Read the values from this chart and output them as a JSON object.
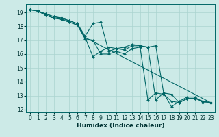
{
  "xlabel": "Humidex (Indice chaleur)",
  "bg_color": "#cceae7",
  "grid_color": "#aad4d0",
  "line_color": "#006666",
  "xlim": [
    -0.5,
    23.5
  ],
  "ylim": [
    11.8,
    19.6
  ],
  "xticks": [
    0,
    1,
    2,
    3,
    4,
    5,
    6,
    7,
    8,
    9,
    10,
    11,
    12,
    13,
    14,
    15,
    16,
    17,
    18,
    19,
    20,
    21,
    22,
    23
  ],
  "yticks": [
    12,
    13,
    14,
    15,
    16,
    17,
    18,
    19
  ],
  "series": [
    {
      "x": [
        0,
        1,
        2,
        3,
        4,
        5,
        6,
        7,
        8,
        9,
        10,
        11,
        12,
        13,
        14,
        15,
        16,
        17,
        18,
        19,
        20,
        21,
        22,
        23
      ],
      "y": [
        19.2,
        19.1,
        18.8,
        18.6,
        18.5,
        18.3,
        18.1,
        17.1,
        17.0,
        16.0,
        16.0,
        16.2,
        16.0,
        16.4,
        16.5,
        12.7,
        13.2,
        13.1,
        12.6,
        12.5,
        12.8,
        12.8,
        12.6,
        12.5
      ]
    },
    {
      "x": [
        0,
        1,
        2,
        3,
        4,
        5,
        6,
        7,
        8,
        9,
        10,
        11,
        12,
        13,
        14,
        15,
        16,
        17,
        18,
        19,
        20,
        21,
        22,
        23
      ],
      "y": [
        19.2,
        19.1,
        18.8,
        18.6,
        18.5,
        18.3,
        18.1,
        17.2,
        15.8,
        16.2,
        16.5,
        16.4,
        16.5,
        16.7,
        16.6,
        16.5,
        12.7,
        13.2,
        13.1,
        12.5,
        12.8,
        12.8,
        12.6,
        12.5
      ]
    },
    {
      "x": [
        0,
        1,
        2,
        3,
        4,
        5,
        6,
        7,
        8,
        9,
        10,
        11,
        12,
        13,
        14,
        15,
        16,
        17,
        18,
        19,
        20,
        21,
        22,
        23
      ],
      "y": [
        19.2,
        19.1,
        18.9,
        18.7,
        18.6,
        18.4,
        18.2,
        17.3,
        18.2,
        18.3,
        16.2,
        16.4,
        16.3,
        16.6,
        16.6,
        16.5,
        16.6,
        13.2,
        12.2,
        12.6,
        12.9,
        12.9,
        12.5,
        12.5
      ]
    },
    {
      "x": [
        0,
        1,
        2,
        3,
        4,
        5,
        6,
        7,
        23
      ],
      "y": [
        19.2,
        19.1,
        18.9,
        18.7,
        18.6,
        18.4,
        18.2,
        17.2,
        12.5
      ]
    }
  ]
}
